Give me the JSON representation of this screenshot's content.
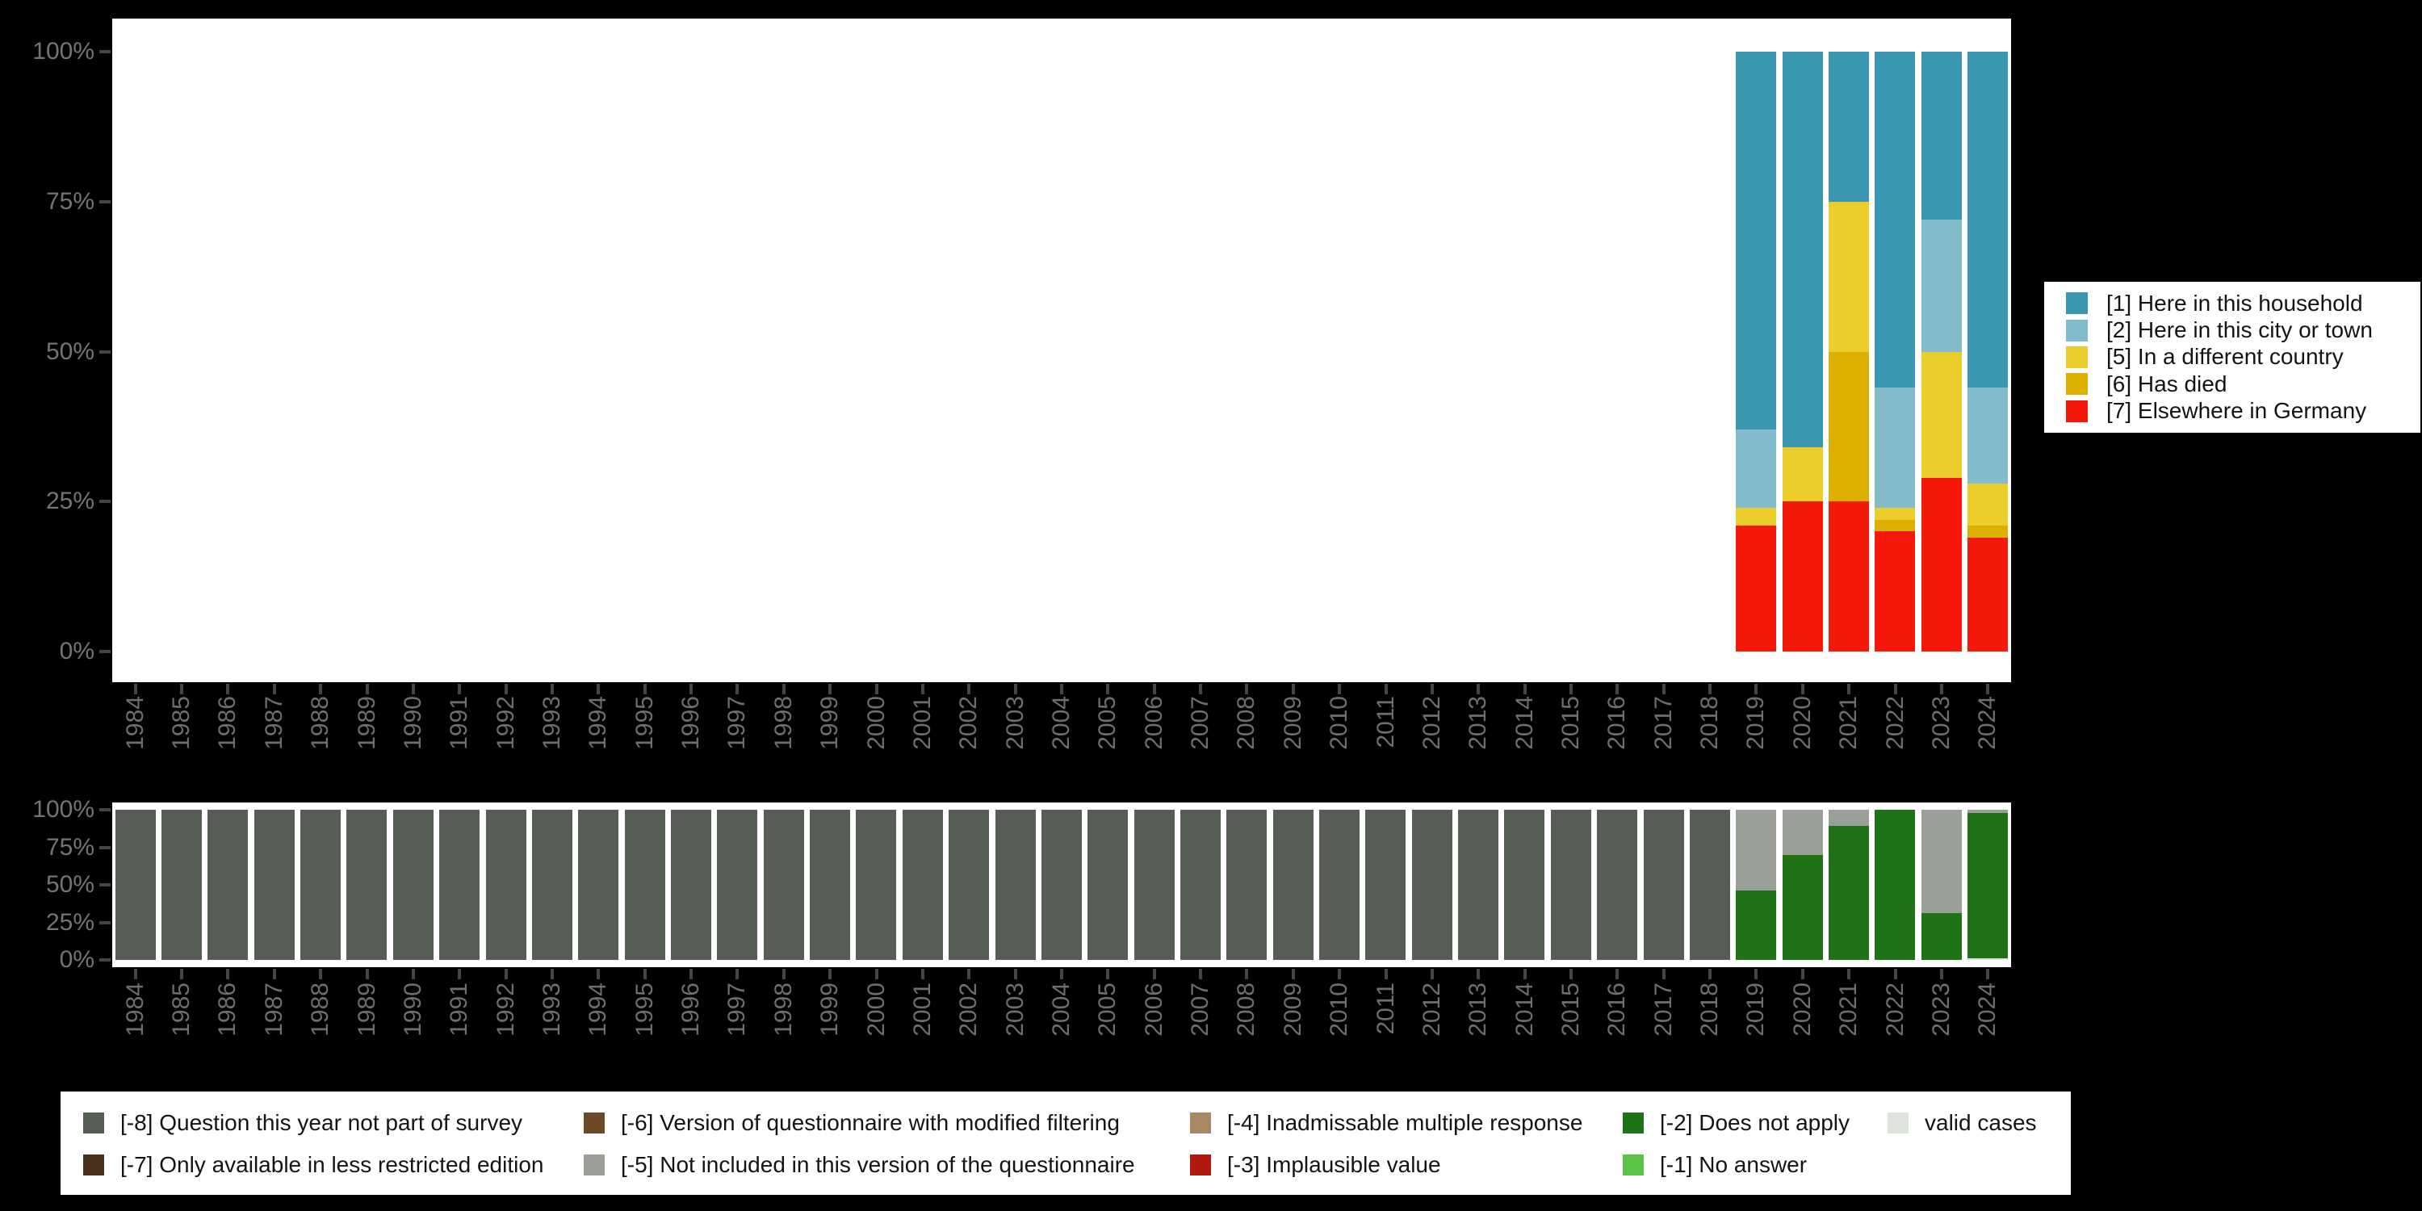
{
  "figure": {
    "page_background": "#000000",
    "panel_background": "#ffffff",
    "axis_text_color": "#747474",
    "y_axis_ticks": [
      "100%",
      "75%",
      "50%",
      "25%",
      "0%"
    ],
    "years": [
      "1984",
      "1985",
      "1986",
      "1987",
      "1988",
      "1989",
      "1990",
      "1991",
      "1992",
      "1993",
      "1994",
      "1995",
      "1996",
      "1997",
      "1998",
      "1999",
      "2000",
      "2001",
      "2002",
      "2003",
      "2004",
      "2005",
      "2006",
      "2007",
      "2008",
      "2009",
      "2010",
      "2011",
      "2012",
      "2013",
      "2014",
      "2015",
      "2016",
      "2017",
      "2018",
      "2019",
      "2020",
      "2021",
      "2022",
      "2023",
      "2024"
    ]
  },
  "chart_data": [
    {
      "id": "whereabouts",
      "type": "bar",
      "stacked": true,
      "orientation": "vertical",
      "unit": "percent",
      "ylim": [
        0,
        100
      ],
      "grid": false,
      "legend_position": "right",
      "y_tick_labels": [
        "100%",
        "75%",
        "50%",
        "25%",
        "0%"
      ],
      "categories": [
        "1984",
        "1985",
        "1986",
        "1987",
        "1988",
        "1989",
        "1990",
        "1991",
        "1992",
        "1993",
        "1994",
        "1995",
        "1996",
        "1997",
        "1998",
        "1999",
        "2000",
        "2001",
        "2002",
        "2003",
        "2004",
        "2005",
        "2006",
        "2007",
        "2008",
        "2009",
        "2010",
        "2011",
        "2012",
        "2013",
        "2014",
        "2015",
        "2016",
        "2017",
        "2018",
        "2019",
        "2020",
        "2021",
        "2022",
        "2023",
        "2024"
      ],
      "series": [
        {
          "name": "[1] Here in this household",
          "color": "#3A97AF",
          "values": {
            "2019": 63,
            "2020": 66,
            "2021": 25,
            "2022": 56,
            "2023": 28,
            "2024": 56
          }
        },
        {
          "name": "[2] Here in this city or town",
          "color": "#82BCCC",
          "values": {
            "2019": 13,
            "2022": 20,
            "2023": 22,
            "2024": 16
          }
        },
        {
          "name": "[5] In a different country",
          "color": "#EBCE2C",
          "values": {
            "2019": 3,
            "2020": 9,
            "2021": 25,
            "2022": 2,
            "2023": 21,
            "2024": 7
          }
        },
        {
          "name": "[6] Has died",
          "color": "#DCAF00",
          "values": {
            "2021": 25,
            "2022": 2,
            "2024": 2
          }
        },
        {
          "name": "[7] Elsewhere in Germany",
          "color": "#F5190B",
          "values": {
            "2019": 21,
            "2020": 25,
            "2021": 25,
            "2022": 20,
            "2023": 29,
            "2024": 19
          }
        }
      ]
    },
    {
      "id": "missings",
      "type": "bar",
      "stacked": true,
      "orientation": "vertical",
      "unit": "percent",
      "ylim": [
        0,
        100
      ],
      "grid": false,
      "legend_position": "bottom",
      "y_tick_labels": [
        "100%",
        "75%",
        "50%",
        "25%",
        "0%"
      ],
      "categories": [
        "1984",
        "1985",
        "1986",
        "1987",
        "1988",
        "1989",
        "1990",
        "1991",
        "1992",
        "1993",
        "1994",
        "1995",
        "1996",
        "1997",
        "1998",
        "1999",
        "2000",
        "2001",
        "2002",
        "2003",
        "2004",
        "2005",
        "2006",
        "2007",
        "2008",
        "2009",
        "2010",
        "2011",
        "2012",
        "2013",
        "2014",
        "2015",
        "2016",
        "2017",
        "2018",
        "2019",
        "2020",
        "2021",
        "2022",
        "2023",
        "2024"
      ],
      "series": [
        {
          "name": "[-8] Question this year not part of survey",
          "color": "#565D55",
          "values": {
            "1984": 100,
            "1985": 100,
            "1986": 100,
            "1987": 100,
            "1988": 100,
            "1989": 100,
            "1990": 100,
            "1991": 100,
            "1992": 100,
            "1993": 100,
            "1994": 100,
            "1995": 100,
            "1996": 100,
            "1997": 100,
            "1998": 100,
            "1999": 100,
            "2000": 100,
            "2001": 100,
            "2002": 100,
            "2003": 100,
            "2004": 100,
            "2005": 100,
            "2006": 100,
            "2007": 100,
            "2008": 100,
            "2009": 100,
            "2010": 100,
            "2011": 100,
            "2012": 100,
            "2013": 100,
            "2014": 100,
            "2015": 100,
            "2016": 100,
            "2017": 100,
            "2018": 100
          }
        },
        {
          "name": "[-7] Only available in less restricted edition",
          "color": "#4A311C",
          "values": {}
        },
        {
          "name": "[-6] Version of questionnaire with modified filtering",
          "color": "#6C4A26",
          "values": {}
        },
        {
          "name": "[-5] Not included in this version of the questionnaire",
          "color": "#9AA098",
          "values": {
            "2019": 54,
            "2020": 30,
            "2021": 11,
            "2023": 69,
            "2024": 2
          }
        },
        {
          "name": "[-4] Inadmissable multiple response",
          "color": "#A98762",
          "values": {}
        },
        {
          "name": "[-3] Implausible value",
          "color": "#B01A0E",
          "values": {}
        },
        {
          "name": "[-2] Does not apply",
          "color": "#1F7316",
          "values": {
            "2019": 46,
            "2020": 70,
            "2021": 89,
            "2022": 100,
            "2023": 31,
            "2024": 97
          }
        },
        {
          "name": "[-1] No answer",
          "color": "#5BC248",
          "values": {}
        },
        {
          "name": "valid cases",
          "color": "#DDE3DD",
          "values": {
            "2024": 1
          }
        }
      ]
    }
  ]
}
